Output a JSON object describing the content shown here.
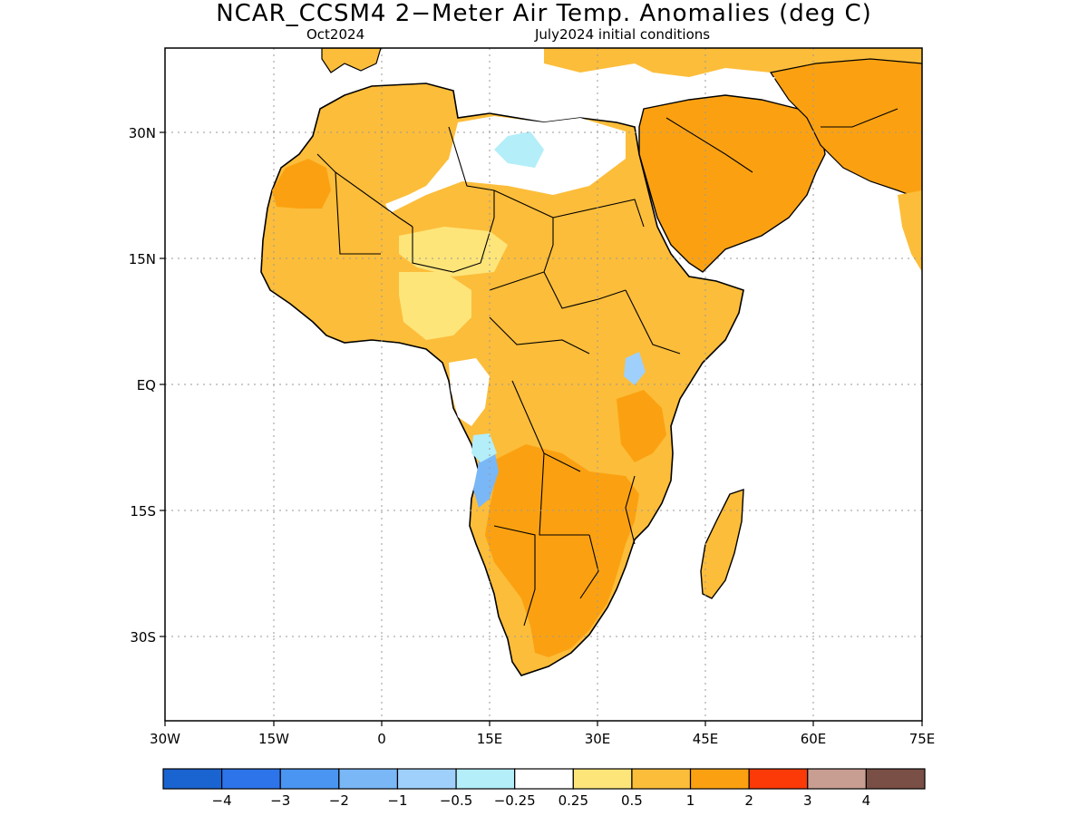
{
  "title": "NCAR_CCSM4 2−Meter Air Temp. Anomalies (deg C)",
  "subtitle_left": "Oct2024",
  "subtitle_right": "July2024 initial conditions",
  "lat_labels": [
    "30N",
    "15N",
    "EQ",
    "15S",
    "30S"
  ],
  "lon_labels": [
    "30W",
    "15W",
    "0",
    "15E",
    "30E",
    "45E",
    "60E",
    "75E"
  ],
  "colorbar": {
    "colors": [
      "#1a64d1",
      "#2d74ea",
      "#4a95f2",
      "#7ab7f7",
      "#9fd0fb",
      "#b3eef9",
      "#ffffff",
      "#fde57a",
      "#fcbd3a",
      "#fba111",
      "#fb3a08",
      "#c89e92",
      "#7a4f45"
    ],
    "labels": [
      "−4",
      "−3",
      "−2",
      "−1",
      "−0.5",
      "−0.25",
      "0.25",
      "0.5",
      "1",
      "2",
      "3",
      "4"
    ]
  }
}
